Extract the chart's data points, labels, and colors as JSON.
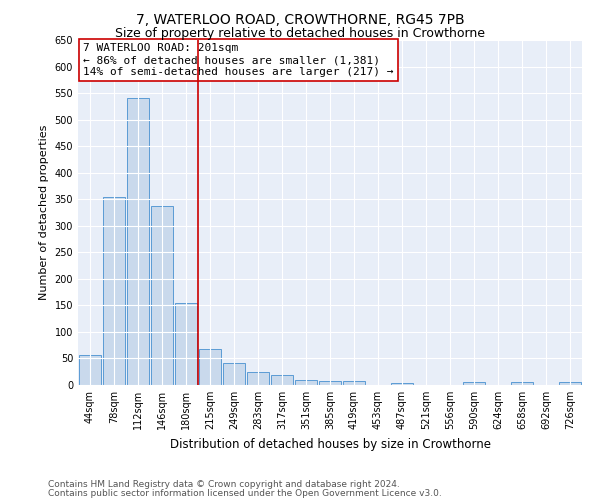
{
  "title": "7, WATERLOO ROAD, CROWTHORNE, RG45 7PB",
  "subtitle": "Size of property relative to detached houses in Crowthorne",
  "xlabel": "Distribution of detached houses by size in Crowthorne",
  "ylabel": "Number of detached properties",
  "categories": [
    "44sqm",
    "78sqm",
    "112sqm",
    "146sqm",
    "180sqm",
    "215sqm",
    "249sqm",
    "283sqm",
    "317sqm",
    "351sqm",
    "385sqm",
    "419sqm",
    "453sqm",
    "487sqm",
    "521sqm",
    "556sqm",
    "590sqm",
    "624sqm",
    "658sqm",
    "692sqm",
    "726sqm"
  ],
  "values": [
    57,
    355,
    540,
    337,
    155,
    68,
    42,
    24,
    18,
    10,
    7,
    7,
    0,
    3,
    0,
    0,
    5,
    0,
    5,
    0,
    5
  ],
  "bar_color": "#c9d9ec",
  "bar_edge_color": "#5b9bd5",
  "vline_x": 4.5,
  "vline_color": "#cc0000",
  "annotation_text": "7 WATERLOO ROAD: 201sqm\n← 86% of detached houses are smaller (1,381)\n14% of semi-detached houses are larger (217) →",
  "annotation_box_color": "#ffffff",
  "annotation_box_edge": "#cc0000",
  "ylim": [
    0,
    650
  ],
  "yticks": [
    0,
    50,
    100,
    150,
    200,
    250,
    300,
    350,
    400,
    450,
    500,
    550,
    600,
    650
  ],
  "footer1": "Contains HM Land Registry data © Crown copyright and database right 2024.",
  "footer2": "Contains public sector information licensed under the Open Government Licence v3.0.",
  "plot_bg_color": "#e8eef8",
  "title_fontsize": 10,
  "subtitle_fontsize": 9,
  "xlabel_fontsize": 8.5,
  "ylabel_fontsize": 8,
  "tick_fontsize": 7,
  "annotation_fontsize": 8,
  "footer_fontsize": 6.5
}
